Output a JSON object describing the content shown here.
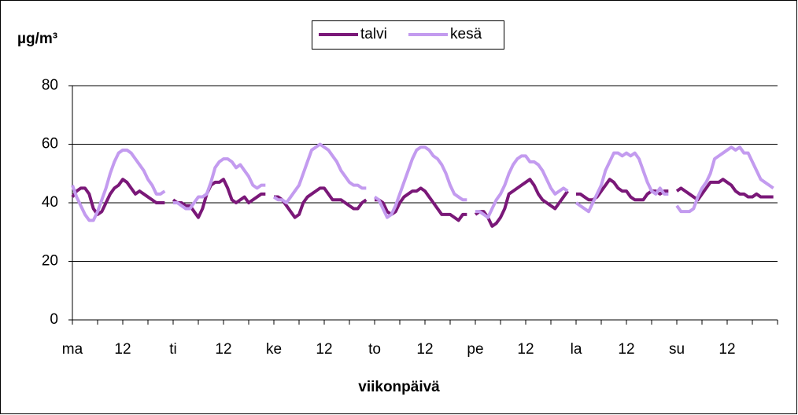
{
  "chart_data": {
    "type": "line",
    "y_label": "µg/m³",
    "x_label": "viikonpäivä",
    "categories": [
      "ma",
      null,
      null,
      null,
      null,
      null,
      null,
      null,
      null,
      null,
      null,
      null,
      "12",
      null,
      null,
      null,
      null,
      null,
      null,
      null,
      null,
      null,
      null,
      null,
      "ti",
      null,
      null,
      null,
      null,
      null,
      null,
      null,
      null,
      null,
      null,
      null,
      "12",
      null,
      null,
      null,
      null,
      null,
      null,
      null,
      null,
      null,
      null,
      null,
      "ke",
      null,
      null,
      null,
      null,
      null,
      null,
      null,
      null,
      null,
      null,
      null,
      "12",
      null,
      null,
      null,
      null,
      null,
      null,
      null,
      null,
      null,
      null,
      null,
      "to",
      null,
      null,
      null,
      null,
      null,
      null,
      null,
      null,
      null,
      null,
      null,
      "12",
      null,
      null,
      null,
      null,
      null,
      null,
      null,
      null,
      null,
      null,
      null,
      "pe",
      null,
      null,
      null,
      null,
      null,
      null,
      null,
      null,
      null,
      null,
      null,
      "12",
      null,
      null,
      null,
      null,
      null,
      null,
      null,
      null,
      null,
      null,
      null,
      "la",
      null,
      null,
      null,
      null,
      null,
      null,
      null,
      null,
      null,
      null,
      null,
      "12",
      null,
      null,
      null,
      null,
      null,
      null,
      null,
      null,
      null,
      null,
      null,
      "su",
      null,
      null,
      null,
      null,
      null,
      null,
      null,
      null,
      null,
      null,
      null,
      "12",
      null,
      null,
      null,
      null,
      null,
      null,
      null,
      null,
      null,
      null,
      null
    ],
    "series": [
      {
        "name": "talvi",
        "color": "#7a1878",
        "values": [
          42,
          44,
          45,
          45,
          43,
          38,
          36,
          37,
          40,
          43,
          45,
          46,
          48,
          47,
          45,
          43,
          44,
          43,
          42,
          41,
          40,
          40,
          40,
          null,
          41,
          40,
          40,
          39,
          39,
          37,
          35,
          38,
          43,
          46,
          47,
          47,
          48,
          45,
          41,
          40,
          41,
          42,
          40,
          41,
          42,
          43,
          43,
          null,
          42,
          42,
          41,
          39,
          37,
          35,
          36,
          40,
          42,
          43,
          44,
          45,
          45,
          43,
          41,
          41,
          41,
          40,
          39,
          38,
          38,
          40,
          41,
          null,
          41,
          41,
          40,
          37,
          36,
          37,
          40,
          42,
          43,
          44,
          44,
          45,
          44,
          42,
          40,
          38,
          36,
          36,
          36,
          35,
          34,
          36,
          36,
          null,
          36,
          37,
          37,
          35,
          32,
          33,
          35,
          38,
          43,
          44,
          45,
          46,
          47,
          48,
          46,
          43,
          41,
          40,
          39,
          38,
          40,
          42,
          44,
          null,
          43,
          43,
          42,
          41,
          41,
          42,
          44,
          46,
          48,
          47,
          45,
          44,
          44,
          42,
          41,
          41,
          41,
          43,
          44,
          44,
          43,
          44,
          44,
          null,
          44,
          45,
          44,
          43,
          42,
          41,
          43,
          45,
          47,
          47,
          47,
          48,
          47,
          46,
          44,
          43,
          43,
          42,
          42,
          43,
          42,
          42,
          42,
          42
        ]
      },
      {
        "name": "kesä",
        "color": "#c39bef",
        "values": [
          46,
          42,
          39,
          36,
          34,
          34,
          37,
          41,
          45,
          50,
          54,
          57,
          58,
          58,
          57,
          55,
          53,
          51,
          48,
          46,
          43,
          43,
          44,
          null,
          40,
          40,
          39,
          38,
          38,
          40,
          42,
          42,
          43,
          47,
          52,
          54,
          55,
          55,
          54,
          52,
          53,
          51,
          49,
          46,
          45,
          46,
          46,
          null,
          42,
          41,
          41,
          40,
          42,
          44,
          46,
          50,
          54,
          58,
          59,
          60,
          59,
          58,
          56,
          54,
          51,
          49,
          47,
          46,
          46,
          45,
          45,
          null,
          42,
          41,
          38,
          35,
          36,
          39,
          43,
          47,
          51,
          55,
          58,
          59,
          59,
          58,
          56,
          55,
          53,
          50,
          46,
          43,
          42,
          41,
          41,
          null,
          37,
          37,
          36,
          35,
          38,
          41,
          43,
          46,
          50,
          53,
          55,
          56,
          56,
          54,
          54,
          53,
          51,
          48,
          45,
          43,
          44,
          45,
          44,
          null,
          40,
          39,
          38,
          37,
          40,
          43,
          46,
          51,
          54,
          57,
          57,
          56,
          57,
          56,
          57,
          55,
          51,
          47,
          44,
          43,
          45,
          43,
          43,
          null,
          39,
          37,
          37,
          37,
          38,
          42,
          45,
          47,
          50,
          55,
          56,
          57,
          58,
          59,
          58,
          59,
          57,
          57,
          54,
          51,
          48,
          47,
          46,
          45
        ]
      }
    ],
    "xticks": [
      0,
      6,
      12,
      18,
      24,
      30,
      36,
      42,
      48,
      54,
      60,
      66,
      72,
      78,
      84,
      90,
      96,
      102,
      108,
      114,
      120,
      126,
      132,
      138,
      144,
      150,
      156,
      162,
      168
    ],
    "xlim": [
      0,
      168
    ],
    "ylim": [
      0,
      80
    ],
    "yticks": [
      0,
      20,
      40,
      60,
      80
    ],
    "grid": true
  }
}
